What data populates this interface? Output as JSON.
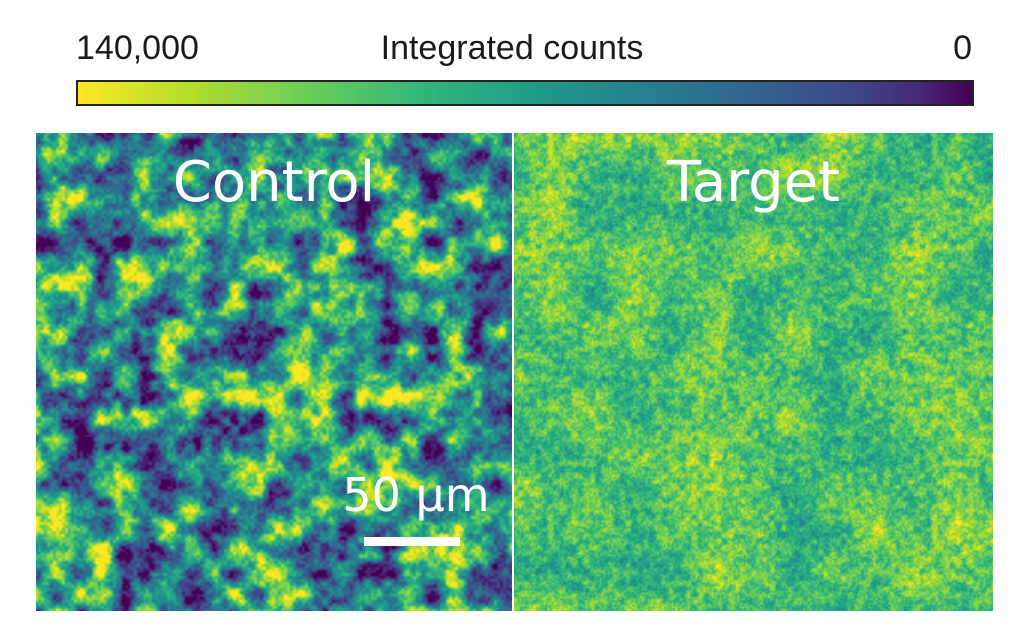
{
  "colorbar": {
    "title": "Integrated counts",
    "left_label": "140,000",
    "right_label": "0",
    "colormap": "viridis-reversed",
    "stops": [
      "#fde725",
      "#b5de2b",
      "#6ece58",
      "#35b779",
      "#1f9e89",
      "#26828e",
      "#31688e",
      "#3e4989",
      "#482878",
      "#440154"
    ]
  },
  "panels": [
    {
      "label": "Control",
      "texture": "coarse-blotchy",
      "mean_level": 0.5,
      "contrast": 0.85
    },
    {
      "label": "Target",
      "texture": "fine-speckle",
      "mean_level": 0.28,
      "contrast": 0.35
    }
  ],
  "scalebar": {
    "label": "50 µm"
  }
}
